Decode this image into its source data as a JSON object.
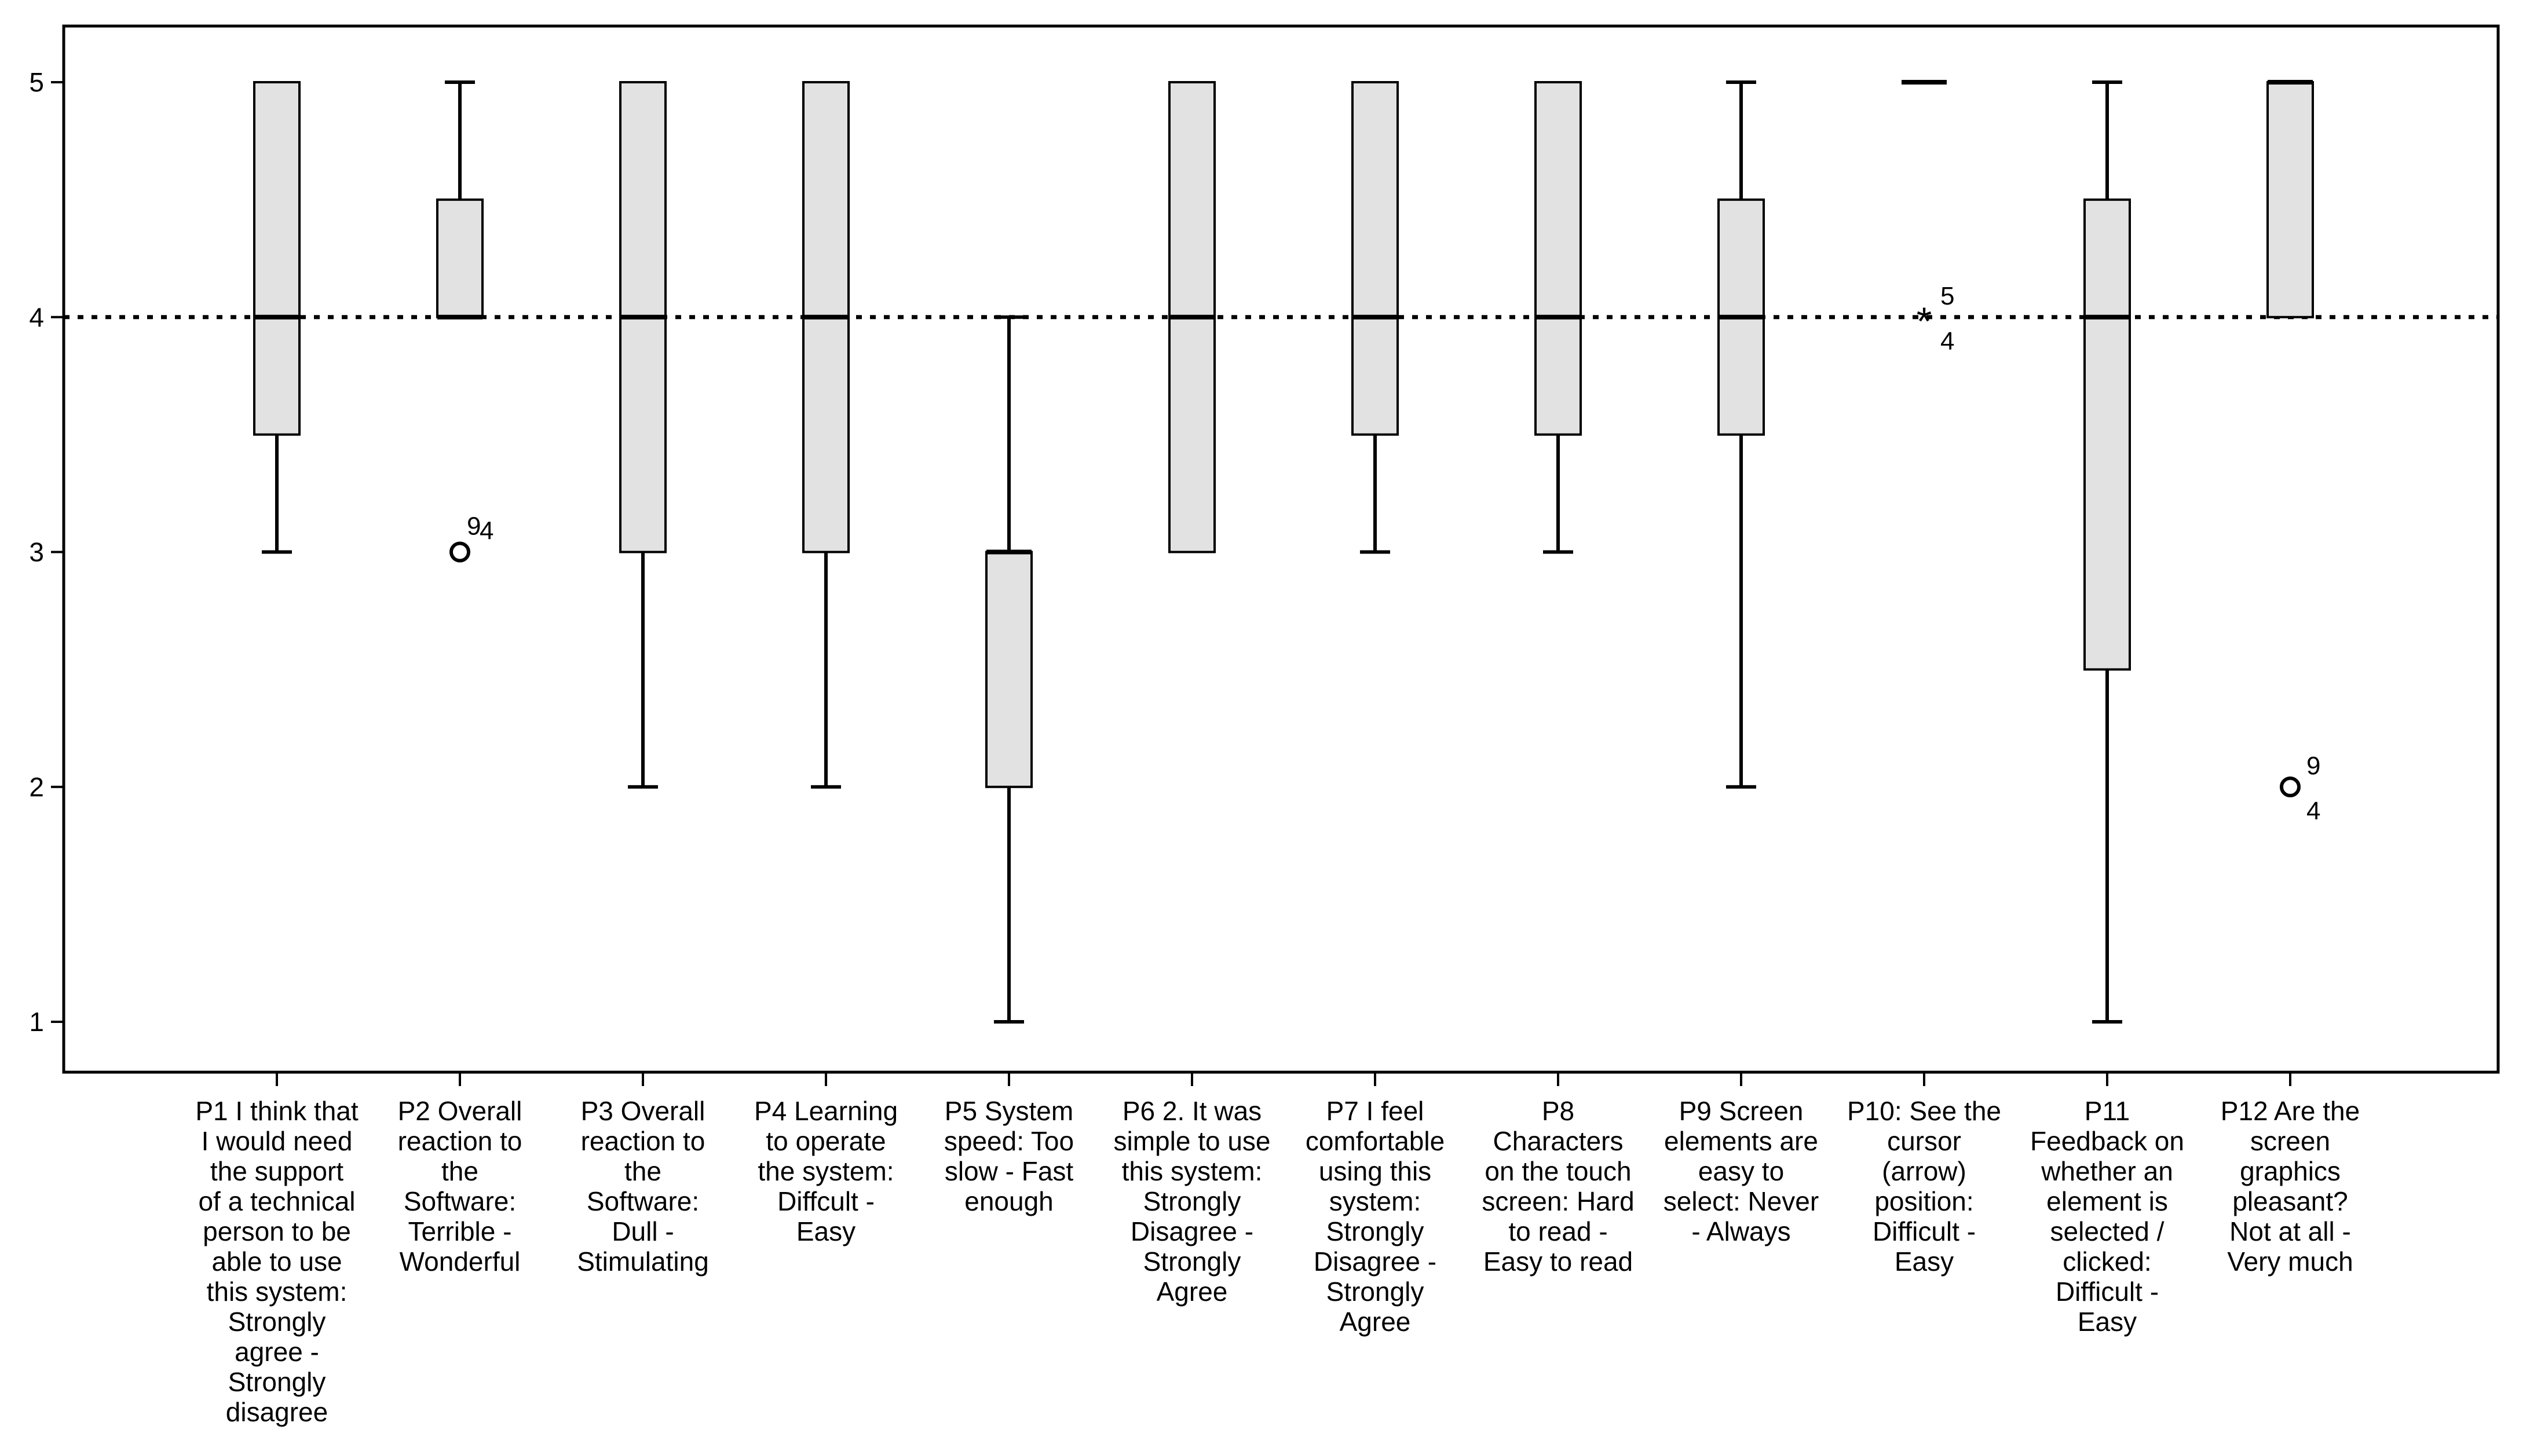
{
  "chart_data": {
    "type": "boxplot",
    "title": "",
    "xlabel": "",
    "ylabel": "",
    "ylim": [
      1,
      5
    ],
    "y_ticks": [
      "1",
      "2",
      "3",
      "4",
      "5"
    ],
    "reference_line": {
      "y": 4,
      "style": "dotted"
    },
    "grid": false,
    "legend": "none",
    "colors": {
      "box_fill": "#e2e2e2",
      "stroke": "#000000"
    },
    "categories": [
      {
        "label_lines": [
          "P1 I think that",
          "I would need",
          "the support",
          "of a technical",
          "person to be",
          "able to use",
          "this system:",
          "Strongly",
          "agree -",
          "Strongly",
          "disagree"
        ],
        "min": 3,
        "q1": 3.5,
        "median": 4,
        "q3": 5,
        "max": 5,
        "outliers": []
      },
      {
        "label_lines": [
          "P2 Overall",
          "reaction to",
          "the",
          "Software:",
          "Terrible -",
          "Wonderful"
        ],
        "min": 4,
        "q1": 4,
        "median": 4,
        "q3": 4.5,
        "max": 5,
        "outliers": [
          {
            "value": 3,
            "marker": "circle",
            "labels": [
              "9",
              "4"
            ]
          }
        ]
      },
      {
        "label_lines": [
          "P3 Overall",
          "reaction to",
          "the",
          "Software:",
          "Dull -",
          "Stimulating"
        ],
        "min": 2,
        "q1": 3,
        "median": 4,
        "q3": 5,
        "max": 5,
        "outliers": []
      },
      {
        "label_lines": [
          "P4 Learning",
          "to operate",
          "the system:",
          "Diffcult -",
          "Easy"
        ],
        "min": 2,
        "q1": 3,
        "median": 4,
        "q3": 5,
        "max": 5,
        "outliers": []
      },
      {
        "label_lines": [
          "P5 System",
          "speed: Too",
          "slow - Fast",
          "enough"
        ],
        "min": 1,
        "q1": 2,
        "median": 3,
        "q3": 3,
        "max": 4,
        "outliers": []
      },
      {
        "label_lines": [
          "P6 2. It was",
          "simple to use",
          "this system:",
          "Strongly",
          "Disagree -",
          "Strongly",
          "Agree"
        ],
        "min": 3,
        "q1": 3,
        "median": 4,
        "q3": 5,
        "max": 5,
        "outliers": []
      },
      {
        "label_lines": [
          "P7  I feel",
          "comfortable",
          "using this",
          "system:",
          "Strongly",
          "Disagree -",
          "Strongly",
          "Agree"
        ],
        "min": 3,
        "q1": 3.5,
        "median": 4,
        "q3": 5,
        "max": 5,
        "outliers": []
      },
      {
        "label_lines": [
          "P8",
          "Characters",
          "on the touch",
          "screen: Hard",
          "to read -",
          "Easy to read"
        ],
        "min": 3,
        "q1": 3.5,
        "median": 4,
        "q3": 5,
        "max": 5,
        "outliers": []
      },
      {
        "label_lines": [
          "P9 Screen",
          "elements are",
          "easy to",
          "select: Never",
          "- Always"
        ],
        "min": 2,
        "q1": 3.5,
        "median": 4,
        "q3": 4.5,
        "max": 5,
        "outliers": []
      },
      {
        "label_lines": [
          "P10: See the",
          "cursor",
          "(arrow)",
          "position:",
          "Difficult -",
          "Easy"
        ],
        "min": 5,
        "q1": 5,
        "median": 5,
        "q3": 5,
        "max": 5,
        "outliers": [
          {
            "value": 4,
            "marker": "star",
            "labels": [
              "5",
              "4"
            ]
          }
        ]
      },
      {
        "label_lines": [
          "P11",
          "Feedback on",
          "whether an",
          "element is",
          "selected /",
          "clicked:",
          "Difficult -",
          "Easy"
        ],
        "min": 1,
        "q1": 2.5,
        "median": 4,
        "q3": 4.5,
        "max": 5,
        "outliers": []
      },
      {
        "label_lines": [
          "P12 Are the",
          "screen",
          "graphics",
          "pleasant?",
          "Not at all -",
          "Very much"
        ],
        "min": 4,
        "q1": 4,
        "median": 5,
        "q3": 5,
        "max": 5,
        "outliers": [
          {
            "value": 2,
            "marker": "circle",
            "labels": [
              "9",
              "4"
            ]
          }
        ]
      }
    ]
  }
}
